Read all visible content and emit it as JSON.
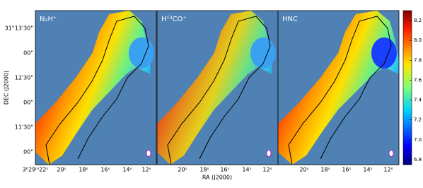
{
  "chart_data": {
    "type": "velocity-map",
    "panels": [
      {
        "label": "N₂H⁺"
      },
      {
        "label": "H¹³CO⁺"
      },
      {
        "label": "HNC"
      }
    ],
    "y_axis_label": "DEC (J2000)",
    "x_axis_label": "RA (J2000)",
    "dec_ticks": [
      "31°13'30\"",
      "00\"",
      "12'30\"",
      "00\"",
      "11'30\"",
      "00\""
    ],
    "ra_ticks_first": [
      "3ʰ29ᵐ22ˢ",
      "20ˢ",
      "18ˢ",
      "16ˢ",
      "14ˢ",
      "12ˢ"
    ],
    "ra_ticks": [
      "20ˢ",
      "18ˢ",
      "16ˢ",
      "14ˢ",
      "12ˢ"
    ],
    "colorbar": {
      "lim": [
        6.75,
        8.3
      ],
      "ticks": [
        6.8,
        {
          "value": 7,
          "label": "7.0"
        },
        7.2,
        7.4,
        7.6,
        7.8,
        {
          "value": 8,
          "label": "8.0"
        },
        8.2
      ]
    }
  }
}
